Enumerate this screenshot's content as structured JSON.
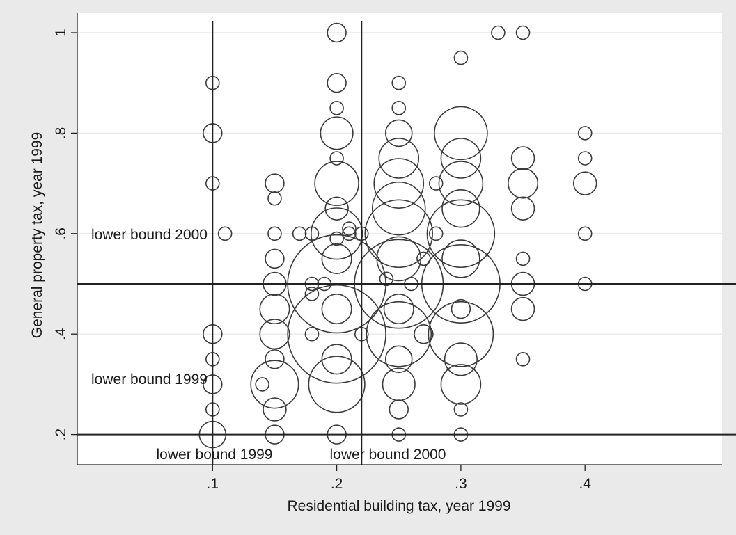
{
  "chart_data": {
    "type": "scatter",
    "marker": "hollow-circle-weighted",
    "xlabel": "Residential building tax, year 1999",
    "ylabel": "General property tax, year 1999",
    "xlim": [
      0,
      0.5
    ],
    "ylim": [
      0,
      1.05
    ],
    "grid": true,
    "xticks": [
      {
        "value": 0.1,
        "label": ".1"
      },
      {
        "value": 0.2,
        "label": ".2"
      },
      {
        "value": 0.3,
        "label": ".3"
      },
      {
        "value": 0.4,
        "label": ".4"
      }
    ],
    "yticks": [
      {
        "value": 0.2,
        "label": ".2"
      },
      {
        "value": 0.4,
        "label": ".4"
      },
      {
        "value": 0.6,
        "label": ".6"
      },
      {
        "value": 0.8,
        "label": ".8"
      },
      {
        "value": 1.0,
        "label": "1"
      }
    ],
    "reference_lines": [
      {
        "axis": "x",
        "value": 0.1,
        "label": "lower bound 1999"
      },
      {
        "axis": "x",
        "value": 0.22,
        "label": "lower bound 2000"
      },
      {
        "axis": "y",
        "value": 0.5,
        "label": "lower bound 2000"
      },
      {
        "axis": "y",
        "value": 0.2,
        "label": "lower bound 1999"
      }
    ],
    "points": [
      {
        "x": 0.1,
        "y": 0.9,
        "w": 1
      },
      {
        "x": 0.1,
        "y": 0.8,
        "w": 2
      },
      {
        "x": 0.1,
        "y": 0.7,
        "w": 1
      },
      {
        "x": 0.1,
        "y": 0.4,
        "w": 2
      },
      {
        "x": 0.1,
        "y": 0.35,
        "w": 1
      },
      {
        "x": 0.1,
        "y": 0.3,
        "w": 2
      },
      {
        "x": 0.1,
        "y": 0.25,
        "w": 1
      },
      {
        "x": 0.1,
        "y": 0.2,
        "w": 4
      },
      {
        "x": 0.11,
        "y": 0.6,
        "w": 1
      },
      {
        "x": 0.14,
        "y": 0.3,
        "w": 1
      },
      {
        "x": 0.15,
        "y": 0.7,
        "w": 2
      },
      {
        "x": 0.15,
        "y": 0.67,
        "w": 1
      },
      {
        "x": 0.15,
        "y": 0.6,
        "w": 1
      },
      {
        "x": 0.15,
        "y": 0.55,
        "w": 2
      },
      {
        "x": 0.15,
        "y": 0.5,
        "w": 3
      },
      {
        "x": 0.15,
        "y": 0.45,
        "w": 5
      },
      {
        "x": 0.15,
        "y": 0.4,
        "w": 5
      },
      {
        "x": 0.15,
        "y": 0.35,
        "w": 2
      },
      {
        "x": 0.15,
        "y": 0.3,
        "w": 13
      },
      {
        "x": 0.15,
        "y": 0.25,
        "w": 3
      },
      {
        "x": 0.15,
        "y": 0.2,
        "w": 2
      },
      {
        "x": 0.17,
        "y": 0.6,
        "w": 1
      },
      {
        "x": 0.18,
        "y": 0.6,
        "w": 1
      },
      {
        "x": 0.18,
        "y": 0.5,
        "w": 1
      },
      {
        "x": 0.18,
        "y": 0.48,
        "w": 1
      },
      {
        "x": 0.18,
        "y": 0.4,
        "w": 1
      },
      {
        "x": 0.19,
        "y": 0.5,
        "w": 1
      },
      {
        "x": 0.2,
        "y": 1.0,
        "w": 2
      },
      {
        "x": 0.2,
        "y": 0.9,
        "w": 2
      },
      {
        "x": 0.2,
        "y": 0.85,
        "w": 1
      },
      {
        "x": 0.2,
        "y": 0.8,
        "w": 6
      },
      {
        "x": 0.2,
        "y": 0.75,
        "w": 1
      },
      {
        "x": 0.2,
        "y": 0.7,
        "w": 11
      },
      {
        "x": 0.2,
        "y": 0.65,
        "w": 3
      },
      {
        "x": 0.2,
        "y": 0.6,
        "w": 15
      },
      {
        "x": 0.2,
        "y": 0.59,
        "w": 1
      },
      {
        "x": 0.2,
        "y": 0.55,
        "w": 5
      },
      {
        "x": 0.2,
        "y": 0.5,
        "w": 55
      },
      {
        "x": 0.2,
        "y": 0.45,
        "w": 5
      },
      {
        "x": 0.2,
        "y": 0.4,
        "w": 55
      },
      {
        "x": 0.2,
        "y": 0.35,
        "w": 5
      },
      {
        "x": 0.2,
        "y": 0.3,
        "w": 18
      },
      {
        "x": 0.2,
        "y": 0.2,
        "w": 2
      },
      {
        "x": 0.21,
        "y": 0.61,
        "w": 1
      },
      {
        "x": 0.21,
        "y": 0.6,
        "w": 1
      },
      {
        "x": 0.22,
        "y": 0.6,
        "w": 1
      },
      {
        "x": 0.22,
        "y": 0.4,
        "w": 1
      },
      {
        "x": 0.24,
        "y": 0.51,
        "w": 1
      },
      {
        "x": 0.25,
        "y": 0.9,
        "w": 1
      },
      {
        "x": 0.25,
        "y": 0.85,
        "w": 1
      },
      {
        "x": 0.25,
        "y": 0.8,
        "w": 4
      },
      {
        "x": 0.25,
        "y": 0.75,
        "w": 9
      },
      {
        "x": 0.25,
        "y": 0.7,
        "w": 14
      },
      {
        "x": 0.25,
        "y": 0.65,
        "w": 16
      },
      {
        "x": 0.25,
        "y": 0.6,
        "w": 26
      },
      {
        "x": 0.25,
        "y": 0.55,
        "w": 11
      },
      {
        "x": 0.25,
        "y": 0.5,
        "w": 45
      },
      {
        "x": 0.25,
        "y": 0.45,
        "w": 5
      },
      {
        "x": 0.25,
        "y": 0.4,
        "w": 24
      },
      {
        "x": 0.25,
        "y": 0.35,
        "w": 4
      },
      {
        "x": 0.25,
        "y": 0.3,
        "w": 6
      },
      {
        "x": 0.25,
        "y": 0.25,
        "w": 2
      },
      {
        "x": 0.25,
        "y": 0.2,
        "w": 1
      },
      {
        "x": 0.26,
        "y": 0.5,
        "w": 1
      },
      {
        "x": 0.27,
        "y": 0.55,
        "w": 1
      },
      {
        "x": 0.27,
        "y": 0.4,
        "w": 2
      },
      {
        "x": 0.28,
        "y": 0.7,
        "w": 1
      },
      {
        "x": 0.28,
        "y": 0.6,
        "w": 1
      },
      {
        "x": 0.3,
        "y": 0.95,
        "w": 1
      },
      {
        "x": 0.3,
        "y": 0.8,
        "w": 16
      },
      {
        "x": 0.3,
        "y": 0.75,
        "w": 9
      },
      {
        "x": 0.3,
        "y": 0.7,
        "w": 11
      },
      {
        "x": 0.3,
        "y": 0.65,
        "w": 8
      },
      {
        "x": 0.3,
        "y": 0.6,
        "w": 26
      },
      {
        "x": 0.3,
        "y": 0.55,
        "w": 8
      },
      {
        "x": 0.3,
        "y": 0.5,
        "w": 35
      },
      {
        "x": 0.3,
        "y": 0.45,
        "w": 2
      },
      {
        "x": 0.3,
        "y": 0.4,
        "w": 24
      },
      {
        "x": 0.3,
        "y": 0.35,
        "w": 6
      },
      {
        "x": 0.3,
        "y": 0.3,
        "w": 9
      },
      {
        "x": 0.3,
        "y": 0.25,
        "w": 1
      },
      {
        "x": 0.3,
        "y": 0.2,
        "w": 1
      },
      {
        "x": 0.33,
        "y": 1.0,
        "w": 1
      },
      {
        "x": 0.35,
        "y": 1.0,
        "w": 1
      },
      {
        "x": 0.35,
        "y": 0.75,
        "w": 3
      },
      {
        "x": 0.35,
        "y": 0.7,
        "w": 5
      },
      {
        "x": 0.35,
        "y": 0.65,
        "w": 3
      },
      {
        "x": 0.35,
        "y": 0.55,
        "w": 1
      },
      {
        "x": 0.35,
        "y": 0.5,
        "w": 3
      },
      {
        "x": 0.35,
        "y": 0.45,
        "w": 3
      },
      {
        "x": 0.35,
        "y": 0.35,
        "w": 1
      },
      {
        "x": 0.4,
        "y": 0.8,
        "w": 1
      },
      {
        "x": 0.4,
        "y": 0.75,
        "w": 1
      },
      {
        "x": 0.4,
        "y": 0.7,
        "w": 3
      },
      {
        "x": 0.4,
        "y": 0.6,
        "w": 1
      },
      {
        "x": 0.4,
        "y": 0.5,
        "w": 1
      }
    ]
  }
}
